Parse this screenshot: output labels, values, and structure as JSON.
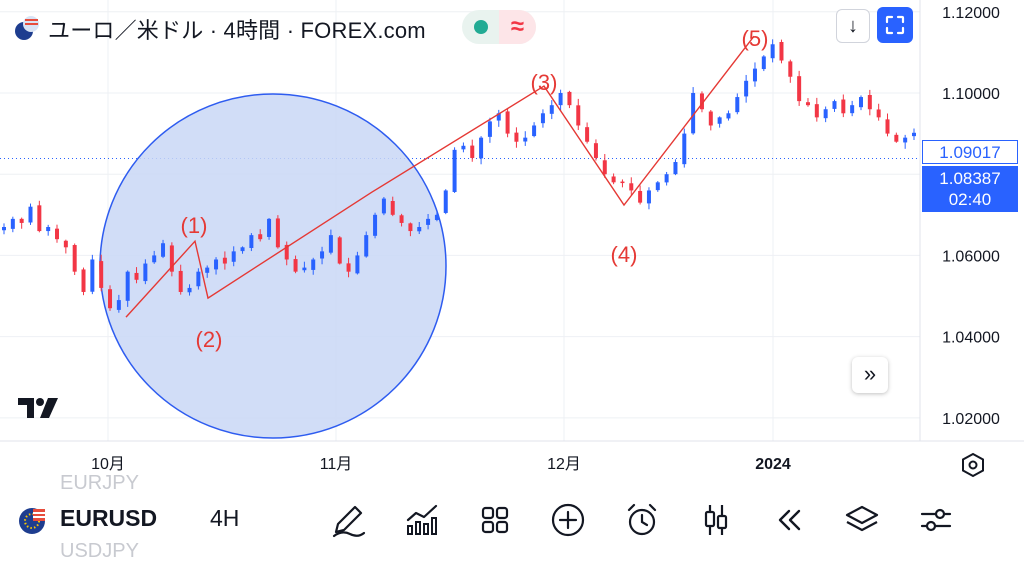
{
  "header": {
    "title": "ユーロ／米ドル · 4時間 · FOREX.com",
    "status_icon": "market-open-dot",
    "waves_icon": "≈",
    "download_icon": "↓",
    "fullscreen_icon": "fullscreen-icon"
  },
  "price_tags": {
    "last": "1.09017",
    "current": "1.08387",
    "countdown": "02:40"
  },
  "scroll_button": "»",
  "annotations": [
    "(1)",
    "(2)",
    "(3)",
    "(4)",
    "(5)"
  ],
  "bottom_bar": {
    "symbol": "EURUSD",
    "timeframe": "4H",
    "ghost_above": "EURJPY",
    "ghost_below": "USDJPY",
    "tools": [
      "draw-icon",
      "indicators-icon",
      "layouts-icon",
      "add-icon",
      "alert-icon",
      "chart-type-icon",
      "replay-icon",
      "layers-icon",
      "settings-sliders-icon"
    ]
  },
  "colors": {
    "up": "#2962ff",
    "down": "#f23645",
    "accent": "#2962ff",
    "circle_fill": "#c9d7f6",
    "circle_stroke": "#2e5cf0",
    "wave_line": "#e53935"
  },
  "chart_data": {
    "type": "candlestick",
    "symbol": "EURUSD",
    "timeframe": "4H",
    "y_ticks": [
      "1.12000",
      "1.10000",
      "1.06000",
      "1.04000",
      "1.02000"
    ],
    "x_ticks": [
      "10月",
      "11月",
      "12月",
      "2024"
    ],
    "ylim": [
      1.0143,
      1.1229
    ],
    "waves": [
      {
        "label": "(1)",
        "price": 1.0635
      },
      {
        "label": "(2)",
        "price": 1.0495
      },
      {
        "label": "(3)",
        "price": 1.1017
      },
      {
        "label": "(4)",
        "price": 1.0724
      },
      {
        "label": "(5)",
        "price": 1.114
      }
    ],
    "wave_path": [
      1.0448,
      1.0635,
      1.0495,
      1.0756,
      1.1017,
      1.0724,
      1.114
    ],
    "series_close": [
      1.067,
      1.069,
      1.068,
      1.072,
      1.066,
      1.067,
      1.064,
      1.062,
      1.056,
      1.051,
      1.059,
      1.052,
      1.047,
      1.049,
      1.056,
      1.054,
      1.058,
      1.06,
      1.063,
      1.056,
      1.051,
      1.052,
      1.056,
      1.057,
      1.059,
      1.058,
      1.061,
      1.062,
      1.065,
      1.064,
      1.069,
      1.062,
      1.059,
      1.056,
      1.057,
      1.059,
      1.061,
      1.065,
      1.058,
      1.056,
      1.06,
      1.065,
      1.07,
      1.074,
      1.07,
      1.068,
      1.066,
      1.067,
      1.069,
      1.07,
      1.076,
      1.086,
      1.087,
      1.084,
      1.089,
      1.093,
      1.095,
      1.09,
      1.088,
      1.089,
      1.092,
      1.095,
      1.097,
      1.1,
      1.097,
      1.092,
      1.088,
      1.084,
      1.08,
      1.078,
      1.078,
      1.076,
      1.073,
      1.076,
      1.078,
      1.08,
      1.083,
      1.09,
      1.1,
      1.096,
      1.092,
      1.094,
      1.095,
      1.099,
      1.103,
      1.106,
      1.109,
      1.112,
      1.108,
      1.104,
      1.098,
      1.097,
      1.094,
      1.096,
      1.098,
      1.095,
      1.097,
      1.099,
      1.096,
      1.094,
      1.09,
      1.088,
      1.089,
      1.0902
    ],
    "last_price": "1.09017",
    "current_price": "1.08387"
  }
}
